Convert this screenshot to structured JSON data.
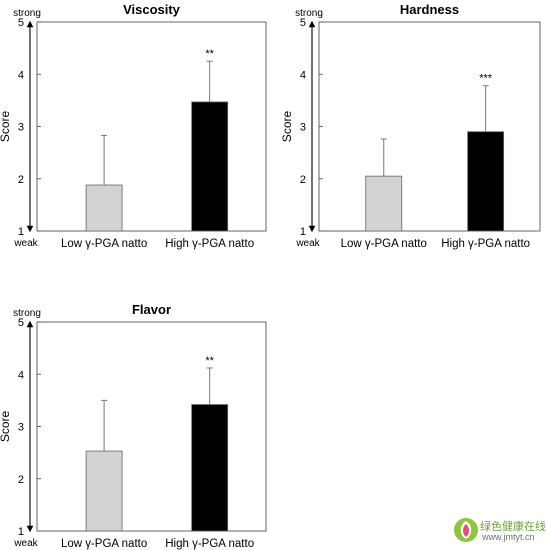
{
  "chart_data": [
    {
      "type": "bar",
      "title": "Viscosity",
      "ylabel": "Score",
      "ylim": [
        1,
        5
      ],
      "yticks": [
        "1",
        "2",
        "3",
        "4",
        "5"
      ],
      "scale_top_label": "strong",
      "scale_bottom_label": "weak",
      "categories": [
        "Low γ-PGA natto",
        "High γ-PGA natto"
      ],
      "values": [
        1.88,
        3.47
      ],
      "errors": [
        0.95,
        0.78
      ],
      "bar_colors": [
        "#d3d3d3",
        "#000000"
      ],
      "significance": [
        "",
        "**"
      ]
    },
    {
      "type": "bar",
      "title": "Hardness",
      "ylabel": "Score",
      "ylim": [
        1,
        5
      ],
      "yticks": [
        "1",
        "2",
        "3",
        "4",
        "5"
      ],
      "scale_top_label": "strong",
      "scale_bottom_label": "weak",
      "categories": [
        "Low γ-PGA natto",
        "High γ-PGA natto"
      ],
      "values": [
        2.05,
        2.9
      ],
      "errors": [
        0.71,
        0.88
      ],
      "bar_colors": [
        "#d3d3d3",
        "#000000"
      ],
      "significance": [
        "",
        "***"
      ]
    },
    {
      "type": "bar",
      "title": "Flavor",
      "ylabel": "Score",
      "ylim": [
        1,
        5
      ],
      "yticks": [
        "1",
        "2",
        "3",
        "4",
        "5"
      ],
      "scale_top_label": "strong",
      "scale_bottom_label": "weak",
      "categories": [
        "Low γ-PGA natto",
        "High γ-PGA natto"
      ],
      "values": [
        2.53,
        3.42
      ],
      "errors": [
        0.97,
        0.7
      ],
      "bar_colors": [
        "#d3d3d3",
        "#000000"
      ],
      "significance": [
        "",
        "**"
      ]
    }
  ],
  "watermark": {
    "title": "绿色健康在线",
    "url": "www.jmtyt.cn",
    "accent_color": "#6aa336"
  }
}
